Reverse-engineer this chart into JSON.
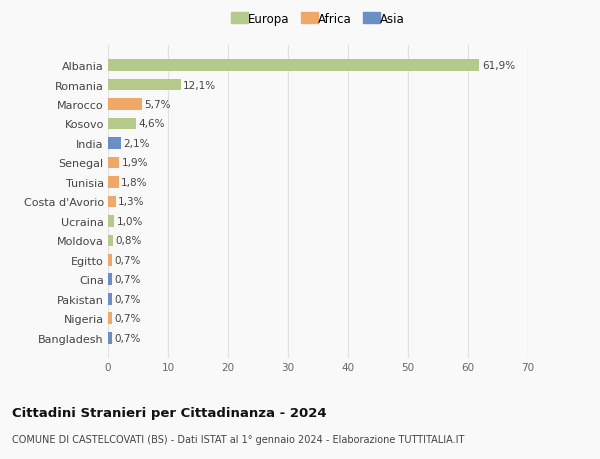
{
  "categories": [
    "Albania",
    "Romania",
    "Marocco",
    "Kosovo",
    "India",
    "Senegal",
    "Tunisia",
    "Costa d'Avorio",
    "Ucraina",
    "Moldova",
    "Egitto",
    "Cina",
    "Pakistan",
    "Nigeria",
    "Bangladesh"
  ],
  "values": [
    61.9,
    12.1,
    5.7,
    4.6,
    2.1,
    1.9,
    1.8,
    1.3,
    1.0,
    0.8,
    0.7,
    0.7,
    0.7,
    0.7,
    0.7
  ],
  "labels": [
    "61,9%",
    "12,1%",
    "5,7%",
    "4,6%",
    "2,1%",
    "1,9%",
    "1,8%",
    "1,3%",
    "1,0%",
    "0,8%",
    "0,7%",
    "0,7%",
    "0,7%",
    "0,7%",
    "0,7%"
  ],
  "colors": [
    "#b5c98a",
    "#b5c98a",
    "#f0a868",
    "#b5c98a",
    "#6b8fc4",
    "#f0a868",
    "#f0a868",
    "#f0a868",
    "#b5c98a",
    "#b5c98a",
    "#f0a868",
    "#6b8fc4",
    "#6b8fc4",
    "#f0a868",
    "#6b8fc4"
  ],
  "legend_labels": [
    "Europa",
    "Africa",
    "Asia"
  ],
  "legend_colors": [
    "#b5c98a",
    "#f0a868",
    "#6b8fc4"
  ],
  "title": "Cittadini Stranieri per Cittadinanza - 2024",
  "subtitle": "COMUNE DI CASTELCOVATI (BS) - Dati ISTAT al 1° gennaio 2024 - Elaborazione TUTTITALIA.IT",
  "xlim": [
    0,
    70
  ],
  "xticks": [
    0,
    10,
    20,
    30,
    40,
    50,
    60,
    70
  ],
  "bg_color": "#f9f9f9",
  "grid_color": "#e0e0e0",
  "bar_height": 0.6
}
